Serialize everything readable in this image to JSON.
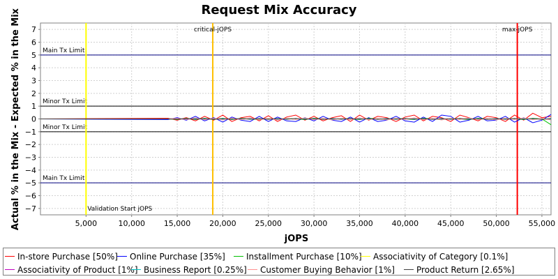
{
  "chart_data": {
    "type": "line",
    "title": "Request Mix Accuracy",
    "xlabel": "jOPS",
    "ylabel": "Actual % in the Mix - Expected % in the Mix",
    "xlim": [
      0,
      56000
    ],
    "ylim": [
      -7.5,
      7.5
    ],
    "x_ticks": [
      5000,
      10000,
      15000,
      20000,
      25000,
      30000,
      35000,
      40000,
      45000,
      50000,
      55000
    ],
    "x_tick_labels": [
      "5,000",
      "10,000",
      "15,000",
      "20,000",
      "25,000",
      "30,000",
      "35,000",
      "40,000",
      "45,000",
      "50,000",
      "55,000"
    ],
    "y_ticks": [
      -7,
      -6,
      -5,
      -4,
      -3,
      -2,
      -1,
      0,
      1,
      2,
      3,
      4,
      5,
      6,
      7
    ],
    "y_tick_labels": [
      "−7",
      "−6",
      "−5",
      "−4",
      "−3",
      "−2",
      "−1",
      "0",
      "1",
      "2",
      "3",
      "4",
      "5",
      "6",
      "7"
    ],
    "grid": true,
    "legend_placement": "bottom",
    "reference_lines": [
      {
        "orientation": "horizontal",
        "value": 5,
        "label": "Main Tx Limit",
        "color": "#000080",
        "label_side": "above"
      },
      {
        "orientation": "horizontal",
        "value": 1,
        "label": "Minor Tx Limit",
        "color": "#000000",
        "label_side": "above"
      },
      {
        "orientation": "horizontal",
        "value": -1,
        "label": "Minor Tx Limit",
        "color": "#000000",
        "label_side": "above"
      },
      {
        "orientation": "horizontal",
        "value": -5,
        "label": "Main Tx Limit",
        "color": "#000080",
        "label_side": "above"
      },
      {
        "orientation": "vertical",
        "value": 5000,
        "label": "Validation Start jOPS",
        "color": "#ffff00",
        "label_pos": "bottom"
      },
      {
        "orientation": "vertical",
        "value": 18900,
        "label": "critical-jOPS",
        "color": "#ffbf00",
        "label_pos": "top"
      },
      {
        "orientation": "vertical",
        "value": 52300,
        "label": "max-jOPS",
        "color": "#ff0000",
        "label_pos": "top"
      }
    ],
    "x": [
      0,
      14000,
      15000,
      16000,
      17000,
      18000,
      19000,
      20000,
      21000,
      22000,
      23000,
      24000,
      25000,
      26000,
      27000,
      28000,
      29000,
      30000,
      31000,
      32000,
      33000,
      34000,
      35000,
      36000,
      37000,
      38000,
      39000,
      40000,
      41000,
      42000,
      43000,
      44000,
      45000,
      46000,
      47000,
      48000,
      49000,
      50000,
      51000,
      52000,
      53000,
      54000,
      55000,
      56000
    ],
    "series": [
      {
        "name": "In-store Purchase [50%]",
        "color": "#ff0000",
        "values": [
          0,
          0.05,
          -0.1,
          0.1,
          -0.15,
          0.2,
          -0.1,
          0.3,
          -0.2,
          0.1,
          0.2,
          -0.15,
          0.25,
          -0.2,
          0.15,
          0.3,
          -0.1,
          0.2,
          -0.15,
          0.1,
          0.25,
          -0.2,
          0.3,
          -0.1,
          0.2,
          0.1,
          -0.2,
          0.15,
          0.3,
          -0.15,
          0.2,
          0.1,
          -0.2,
          0.3,
          0.1,
          -0.15,
          0.2,
          0.1,
          -0.2,
          0.3,
          -0.1,
          0.45,
          0.1,
          0.2
        ]
      },
      {
        "name": "Online Purchase [35%]",
        "color": "#0000ff",
        "values": [
          0,
          -0.05,
          0.1,
          -0.1,
          0.2,
          -0.15,
          0.1,
          -0.25,
          0.15,
          -0.1,
          -0.2,
          0.2,
          -0.2,
          0.15,
          -0.15,
          -0.2,
          0.1,
          -0.15,
          0.2,
          -0.1,
          -0.2,
          0.15,
          -0.25,
          0.1,
          -0.2,
          -0.1,
          0.2,
          -0.15,
          -0.25,
          0.15,
          -0.2,
          0.3,
          0.2,
          -0.25,
          -0.1,
          0.2,
          -0.15,
          -0.1,
          0.2,
          -0.25,
          0.1,
          -0.3,
          -0.1,
          0.35
        ]
      },
      {
        "name": "Installment Purchase [10%]",
        "color": "#00c000",
        "values": [
          0,
          0,
          -0.05,
          0.05,
          -0.05,
          0.05,
          -0.05,
          0.05,
          -0.05,
          0.05,
          0,
          -0.05,
          0.05,
          -0.05,
          0.05,
          0,
          -0.05,
          0.05,
          0,
          -0.05,
          0.05,
          0,
          -0.05,
          0.05,
          0,
          -0.05,
          0.05,
          0,
          -0.05,
          0.05,
          0,
          -0.05,
          0.05,
          0,
          -0.05,
          0.05,
          0,
          -0.05,
          0.05,
          0,
          -0.05,
          0.05,
          0,
          -0.45
        ]
      },
      {
        "name": "Associativity of Category [0.1%]",
        "color": "#ffff00",
        "values": [
          0,
          0,
          0.01,
          -0.01,
          0.01,
          -0.01,
          0.01,
          -0.01,
          0.01,
          -0.01,
          0.01,
          -0.01,
          0.01,
          -0.01,
          0.01,
          -0.01,
          0.01,
          -0.01,
          0.01,
          -0.01,
          0.01,
          -0.01,
          0.01,
          -0.01,
          0.01,
          -0.01,
          0.01,
          -0.01,
          0.01,
          -0.01,
          0.01,
          -0.01,
          0.01,
          -0.01,
          0.01,
          -0.01,
          0.01,
          -0.01,
          0.01,
          -0.01,
          0.01,
          -0.01,
          0.01,
          -0.01
        ]
      },
      {
        "name": "Associativity of Product [1%]",
        "color": "#c000c0",
        "values": [
          0,
          0,
          0.03,
          -0.03,
          0.04,
          -0.03,
          0.03,
          -0.04,
          0.03,
          -0.03,
          0.04,
          -0.03,
          0.03,
          -0.04,
          0.03,
          -0.03,
          0.04,
          -0.03,
          0.03,
          -0.04,
          0.03,
          -0.03,
          0.04,
          -0.03,
          0.03,
          -0.04,
          0.03,
          -0.03,
          0.04,
          -0.03,
          0.03,
          -0.04,
          0.03,
          -0.03,
          0.04,
          -0.03,
          0.03,
          -0.04,
          0.03,
          -0.03,
          0.04,
          -0.03,
          0.03,
          -0.04
        ]
      },
      {
        "name": "Business Report [0.25%]",
        "color": "#00c0c0",
        "values": [
          0,
          0,
          0.02,
          -0.02,
          0.02,
          -0.02,
          0.02,
          -0.02,
          0.02,
          -0.02,
          0.02,
          -0.02,
          0.02,
          -0.02,
          0.02,
          -0.02,
          0.02,
          -0.02,
          0.02,
          -0.02,
          0.02,
          -0.02,
          0.02,
          -0.02,
          0.02,
          -0.02,
          0.02,
          -0.02,
          0.02,
          -0.02,
          0.02,
          -0.02,
          0.02,
          -0.02,
          0.02,
          -0.02,
          0.02,
          -0.02,
          0.02,
          -0.02,
          0.02,
          -0.02,
          0.02,
          -0.02
        ]
      },
      {
        "name": "Customer Buying Behavior [1%]",
        "color": "#ff9090",
        "values": [
          0,
          0,
          0.05,
          -0.05,
          0.08,
          -0.06,
          0.05,
          -0.08,
          0.06,
          -0.05,
          0.08,
          -0.06,
          0.05,
          -0.08,
          0.06,
          -0.05,
          0.08,
          -0.06,
          0.05,
          -0.08,
          0.06,
          -0.05,
          0.08,
          -0.06,
          0.05,
          -0.08,
          0.06,
          -0.05,
          0.08,
          -0.06,
          0.05,
          -0.08,
          0.06,
          -0.05,
          0.08,
          -0.06,
          0.05,
          -0.08,
          0.06,
          -0.05,
          0.08,
          -0.06,
          0.05,
          -0.08
        ]
      },
      {
        "name": "Product Return [2.65%]",
        "color": "#404040",
        "values": [
          0,
          0,
          -0.03,
          0.04,
          -0.03,
          0.03,
          -0.04,
          0.03,
          -0.03,
          0.04,
          -0.03,
          0.03,
          -0.04,
          0.03,
          -0.03,
          0.04,
          -0.03,
          0.03,
          -0.04,
          0.03,
          -0.03,
          0.04,
          -0.03,
          0.03,
          -0.04,
          0.03,
          -0.03,
          0.04,
          -0.03,
          0.03,
          -0.04,
          0.03,
          -0.03,
          0.04,
          -0.03,
          0.03,
          -0.04,
          0.03,
          -0.03,
          0.04,
          -0.03,
          0.03,
          -0.04,
          0.03
        ]
      }
    ]
  }
}
